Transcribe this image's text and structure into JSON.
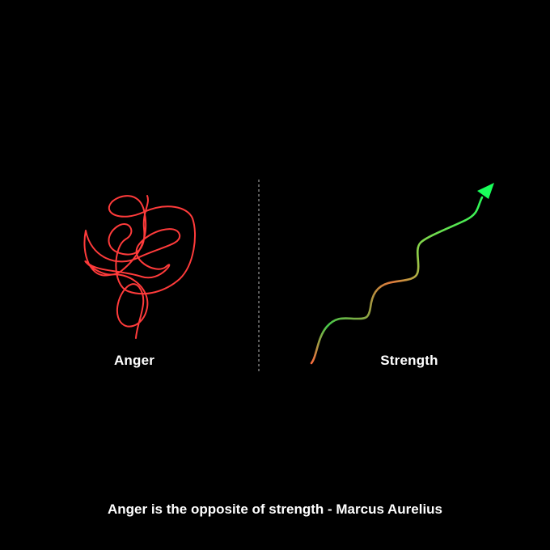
{
  "panels": {
    "left": {
      "label": "Anger"
    },
    "right": {
      "label": "Strength"
    }
  },
  "quote": "Anger is the opposite of strength - Marcus Aurelius",
  "colors": {
    "background": "#000000",
    "text": "#ffffff",
    "anger_line": "#ff3b3b",
    "strength_start": "#ff6a3d",
    "strength_end": "#19ff5a",
    "divider": "#9a9a9a"
  },
  "icons": {
    "tangle": "tangled-line-icon",
    "arrow": "upward-wavy-arrow-icon"
  }
}
